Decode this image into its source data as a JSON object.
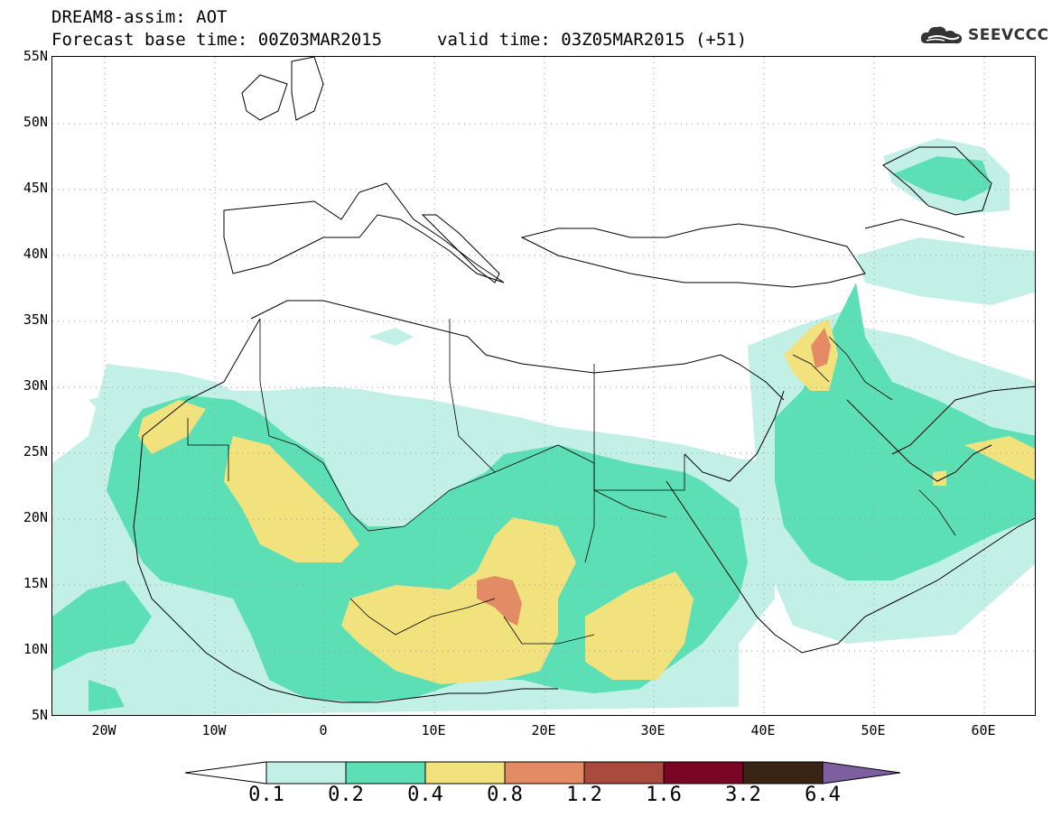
{
  "header": {
    "title": "DREAM8-assim: AOT",
    "base_time": "Forecast base time: 00Z03MAR2015",
    "valid_time": "valid time: 03Z05MAR2015 (+51)",
    "logo_text": "SEEVCCC"
  },
  "axes": {
    "lat_labels": [
      "55N",
      "50N",
      "45N",
      "40N",
      "35N",
      "30N",
      "25N",
      "20N",
      "15N",
      "10N",
      "5N"
    ],
    "lon_labels": [
      "20W",
      "10W",
      "0",
      "10E",
      "20E",
      "30E",
      "40E",
      "50E",
      "60E"
    ]
  },
  "colorbar": {
    "labels": [
      "0.1",
      "0.2",
      "0.4",
      "0.8",
      "1.2",
      "1.6",
      "3.2",
      "6.4"
    ],
    "colors": [
      "#ffffff",
      "#c2efe6",
      "#5ddfb6",
      "#f2e27e",
      "#e38b64",
      "#a94a3c",
      "#7a0525",
      "#3a2414",
      "#7d5ea0"
    ]
  },
  "map": {
    "variable": "AOT",
    "colors": {
      "c1": "#c2efe6",
      "c2": "#5ddfb6",
      "c3": "#f2e27e",
      "c4": "#e38b64",
      "c5": "#a94a3c"
    }
  }
}
